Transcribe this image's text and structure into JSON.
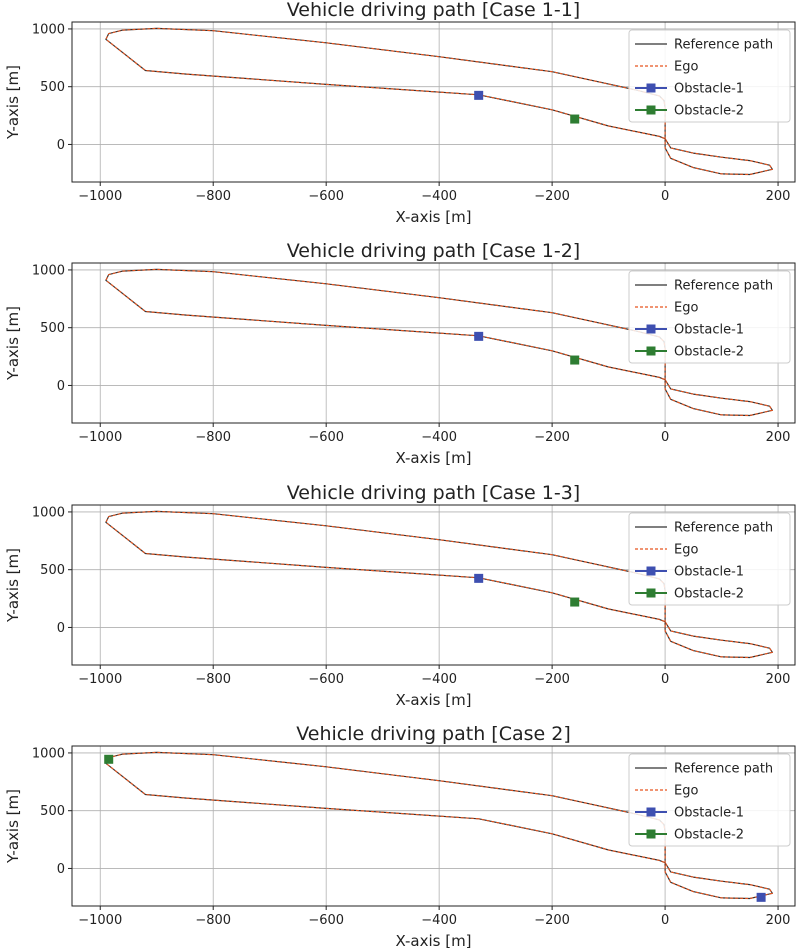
{
  "chart_data": [
    {
      "type": "line",
      "title": "Vehicle driving path [Case 1-1]",
      "xlabel": "X-axis [m]",
      "ylabel": "Y-axis [m]",
      "xlim": [
        -1050,
        230
      ],
      "ylim": [
        -325,
        1060
      ],
      "xticks": [
        -1000,
        -800,
        -600,
        -400,
        -200,
        0,
        200
      ],
      "yticks": [
        0,
        500,
        1000
      ],
      "grid": true,
      "legend": "top-right",
      "series": [
        {
          "name": "Reference path",
          "color": "#333333",
          "style": "solid",
          "x": [
            -330,
            -600,
            -850,
            -920,
            -990,
            -985,
            -960,
            -900,
            -800,
            -600,
            -400,
            -200,
            -50,
            -10,
            -2,
            0,
            0,
            10,
            50,
            100,
            150,
            190,
            185,
            150,
            100,
            50,
            10,
            0,
            -10,
            -100,
            -200,
            -330
          ],
          "y": [
            430,
            520,
            610,
            640,
            910,
            960,
            990,
            1005,
            985,
            880,
            760,
            630,
            470,
            420,
            380,
            320,
            -30,
            -120,
            -200,
            -255,
            -260,
            -215,
            -180,
            -140,
            -110,
            -75,
            -30,
            50,
            70,
            160,
            300,
            430
          ]
        },
        {
          "name": "Ego",
          "color": "#e8541e",
          "style": "dashed",
          "x": [
            -330,
            -600,
            -850,
            -920,
            -990,
            -985,
            -960,
            -900,
            -800,
            -600,
            -400,
            -200,
            -50,
            -10,
            -2,
            0,
            0,
            10,
            50,
            100,
            150,
            190,
            185,
            150,
            100,
            50,
            10,
            0,
            -10,
            -100,
            -200,
            -330
          ],
          "y": [
            430,
            520,
            610,
            640,
            910,
            960,
            990,
            1005,
            985,
            880,
            760,
            630,
            470,
            420,
            380,
            320,
            -30,
            -120,
            -200,
            -255,
            -260,
            -215,
            -180,
            -140,
            -110,
            -75,
            -30,
            50,
            70,
            160,
            300,
            430
          ]
        },
        {
          "name": "Obstacle-1",
          "color": "#3e4fb0",
          "marker": "square",
          "x": [
            -330
          ],
          "y": [
            425
          ]
        },
        {
          "name": "Obstacle-2",
          "color": "#2e7d32",
          "marker": "square",
          "x": [
            -160
          ],
          "y": [
            220
          ]
        }
      ]
    },
    {
      "type": "line",
      "title": "Vehicle driving path [Case 1-2]",
      "xlabel": "X-axis [m]",
      "ylabel": "Y-axis [m]",
      "xlim": [
        -1050,
        230
      ],
      "ylim": [
        -325,
        1060
      ],
      "xticks": [
        -1000,
        -800,
        -600,
        -400,
        -200,
        0,
        200
      ],
      "yticks": [
        0,
        500,
        1000
      ],
      "grid": true,
      "legend": "top-right",
      "series": [
        {
          "name": "Reference path",
          "color": "#333333",
          "style": "solid",
          "x": [
            -330,
            -600,
            -850,
            -920,
            -990,
            -985,
            -960,
            -900,
            -800,
            -600,
            -400,
            -200,
            -50,
            -10,
            -2,
            0,
            0,
            10,
            50,
            100,
            150,
            190,
            185,
            150,
            100,
            50,
            10,
            0,
            -10,
            -100,
            -200,
            -330
          ],
          "y": [
            430,
            520,
            610,
            640,
            910,
            960,
            990,
            1005,
            985,
            880,
            760,
            630,
            470,
            420,
            380,
            320,
            -30,
            -120,
            -200,
            -255,
            -260,
            -215,
            -180,
            -140,
            -110,
            -75,
            -30,
            50,
            70,
            160,
            300,
            430
          ]
        },
        {
          "name": "Ego",
          "color": "#e8541e",
          "style": "dashed",
          "x": [
            -330,
            -600,
            -850,
            -920,
            -990,
            -985,
            -960,
            -900,
            -800,
            -600,
            -400,
            -200,
            -50,
            -10,
            -2,
            0,
            0,
            10,
            50,
            100,
            150,
            190,
            185,
            150,
            100,
            50,
            10,
            0,
            -10,
            -100,
            -200,
            -330
          ],
          "y": [
            430,
            520,
            610,
            640,
            910,
            960,
            990,
            1005,
            985,
            880,
            760,
            630,
            470,
            420,
            380,
            320,
            -30,
            -120,
            -200,
            -255,
            -260,
            -215,
            -180,
            -140,
            -110,
            -75,
            -30,
            50,
            70,
            160,
            300,
            430
          ]
        },
        {
          "name": "Obstacle-1",
          "color": "#3e4fb0",
          "marker": "square",
          "x": [
            -330
          ],
          "y": [
            425
          ]
        },
        {
          "name": "Obstacle-2",
          "color": "#2e7d32",
          "marker": "square",
          "x": [
            -160
          ],
          "y": [
            220
          ]
        }
      ]
    },
    {
      "type": "line",
      "title": "Vehicle driving path [Case 1-3]",
      "xlabel": "X-axis [m]",
      "ylabel": "Y-axis [m]",
      "xlim": [
        -1050,
        230
      ],
      "ylim": [
        -325,
        1060
      ],
      "xticks": [
        -1000,
        -800,
        -600,
        -400,
        -200,
        0,
        200
      ],
      "yticks": [
        0,
        500,
        1000
      ],
      "grid": true,
      "legend": "top-right",
      "series": [
        {
          "name": "Reference path",
          "color": "#333333",
          "style": "solid",
          "x": [
            -330,
            -600,
            -850,
            -920,
            -990,
            -985,
            -960,
            -900,
            -800,
            -600,
            -400,
            -200,
            -50,
            -10,
            -2,
            0,
            0,
            10,
            50,
            100,
            150,
            190,
            185,
            150,
            100,
            50,
            10,
            0,
            -10,
            -100,
            -200,
            -330
          ],
          "y": [
            430,
            520,
            610,
            640,
            910,
            960,
            990,
            1005,
            985,
            880,
            760,
            630,
            470,
            420,
            380,
            320,
            -30,
            -120,
            -200,
            -255,
            -260,
            -215,
            -180,
            -140,
            -110,
            -75,
            -30,
            50,
            70,
            160,
            300,
            430
          ]
        },
        {
          "name": "Ego",
          "color": "#e8541e",
          "style": "dashed",
          "x": [
            -330,
            -600,
            -850,
            -920,
            -990,
            -985,
            -960,
            -900,
            -800,
            -600,
            -400,
            -200,
            -50,
            -10,
            -2,
            0,
            0,
            10,
            50,
            100,
            150,
            190,
            185,
            150,
            100,
            50,
            10,
            0,
            -10,
            -100,
            -200,
            -330
          ],
          "y": [
            430,
            520,
            610,
            640,
            910,
            960,
            990,
            1005,
            985,
            880,
            760,
            630,
            470,
            420,
            380,
            320,
            -30,
            -120,
            -200,
            -255,
            -260,
            -215,
            -180,
            -140,
            -110,
            -75,
            -30,
            50,
            70,
            160,
            300,
            430
          ]
        },
        {
          "name": "Obstacle-1",
          "color": "#3e4fb0",
          "marker": "square",
          "x": [
            -330
          ],
          "y": [
            425
          ]
        },
        {
          "name": "Obstacle-2",
          "color": "#2e7d32",
          "marker": "square",
          "x": [
            -160
          ],
          "y": [
            220
          ]
        }
      ]
    },
    {
      "type": "line",
      "title": "Vehicle driving path [Case 2]",
      "xlabel": "X-axis [m]",
      "ylabel": "Y-axis [m]",
      "xlim": [
        -1050,
        230
      ],
      "ylim": [
        -325,
        1060
      ],
      "xticks": [
        -1000,
        -800,
        -600,
        -400,
        -200,
        0,
        200
      ],
      "yticks": [
        0,
        500,
        1000
      ],
      "grid": true,
      "legend": "top-right",
      "series": [
        {
          "name": "Reference path",
          "color": "#333333",
          "style": "solid",
          "x": [
            -330,
            -600,
            -850,
            -920,
            -990,
            -985,
            -960,
            -900,
            -800,
            -600,
            -400,
            -200,
            -50,
            -10,
            -2,
            0,
            0,
            10,
            50,
            100,
            150,
            190,
            185,
            150,
            100,
            50,
            10,
            0,
            -10,
            -100,
            -200,
            -330
          ],
          "y": [
            430,
            520,
            610,
            640,
            910,
            960,
            990,
            1005,
            985,
            880,
            760,
            630,
            470,
            420,
            380,
            320,
            -30,
            -120,
            -200,
            -255,
            -260,
            -215,
            -180,
            -140,
            -110,
            -75,
            -30,
            50,
            70,
            160,
            300,
            430
          ]
        },
        {
          "name": "Ego",
          "color": "#e8541e",
          "style": "dashed",
          "x": [
            -330,
            -600,
            -850,
            -920,
            -990,
            -985,
            -960,
            -900,
            -800,
            -600,
            -400,
            -200,
            -50,
            -10,
            -2,
            0,
            0,
            10,
            50,
            100,
            150,
            190,
            185,
            150,
            100,
            50,
            10,
            0,
            -10,
            -100,
            -200,
            -330
          ],
          "y": [
            430,
            520,
            610,
            640,
            910,
            960,
            990,
            1005,
            985,
            880,
            760,
            630,
            470,
            420,
            380,
            320,
            -30,
            -120,
            -200,
            -255,
            -260,
            -215,
            -180,
            -140,
            -110,
            -75,
            -30,
            50,
            70,
            160,
            300,
            430
          ]
        },
        {
          "name": "Obstacle-1",
          "color": "#3e4fb0",
          "marker": "square",
          "x": [
            170
          ],
          "y": [
            -250
          ]
        },
        {
          "name": "Obstacle-2",
          "color": "#2e7d32",
          "marker": "square",
          "x": [
            -985
          ],
          "y": [
            945
          ]
        }
      ]
    }
  ]
}
